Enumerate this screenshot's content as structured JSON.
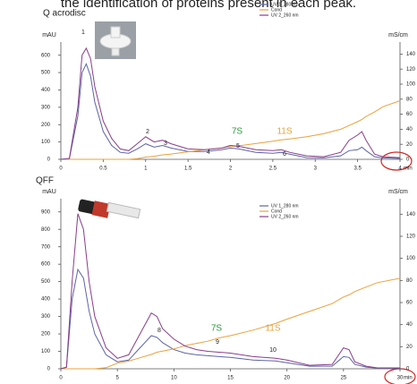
{
  "header": "the identification of proteins present in each peak.",
  "chart_data": [
    {
      "type": "line",
      "title": "Q acrodisc",
      "ylabel": "mAU",
      "y2label": "mS/cm",
      "xlabel": "min",
      "x": [
        0,
        0.1,
        0.2,
        0.25,
        0.3,
        0.35,
        0.4,
        0.5,
        0.6,
        0.7,
        0.8,
        0.9,
        1.0,
        1.1,
        1.2,
        1.3,
        1.5,
        1.7,
        1.9,
        2.0,
        2.1,
        2.3,
        2.5,
        2.6,
        2.7,
        2.9,
        3.1,
        3.3,
        3.4,
        3.5,
        3.55,
        3.6,
        3.7,
        3.8,
        4.0
      ],
      "series": [
        {
          "name": "UV 1_280 nm",
          "color": "#5b63a8",
          "values": [
            0,
            3,
            250,
            500,
            550,
            480,
            330,
            160,
            80,
            40,
            35,
            60,
            90,
            70,
            80,
            65,
            45,
            45,
            55,
            65,
            60,
            40,
            35,
            40,
            30,
            10,
            8,
            20,
            50,
            55,
            70,
            50,
            15,
            8,
            5
          ]
        },
        {
          "name": "Cond",
          "color": "#e8a23c",
          "axis": "y2",
          "values": [
            0,
            0,
            0,
            0,
            0,
            0,
            0,
            0,
            0,
            0,
            0,
            1,
            3,
            4,
            6,
            7,
            10,
            13,
            15,
            17,
            18,
            21,
            24,
            26,
            27,
            30,
            34,
            40,
            45,
            50,
            53,
            57,
            63,
            70,
            78
          ]
        },
        {
          "name": "UV 2_260 nm",
          "color": "#8a3d8a",
          "values": [
            0,
            5,
            300,
            600,
            640,
            580,
            420,
            220,
            120,
            60,
            50,
            90,
            130,
            100,
            110,
            90,
            60,
            55,
            65,
            80,
            75,
            55,
            50,
            55,
            40,
            20,
            15,
            40,
            110,
            140,
            160,
            110,
            30,
            15,
            10
          ]
        }
      ],
      "xlim": [
        0,
        4
      ],
      "xticks": [
        0,
        0.5,
        1,
        1.5,
        2,
        2.5,
        3,
        3.5,
        4
      ],
      "ylim": [
        0,
        650
      ],
      "yticks": [
        0,
        100,
        200,
        300,
        400,
        500,
        600
      ],
      "y2lim": [
        0,
        150
      ],
      "y2ticks": [
        0,
        20,
        40,
        60,
        80,
        100,
        120,
        140
      ],
      "annotations": [
        "1",
        "2",
        "3",
        "4",
        "7S",
        "5",
        "11S",
        "6"
      ]
    },
    {
      "type": "line",
      "title": "QFF",
      "ylabel": "mAU",
      "y2label": "mS/cm",
      "xlabel": "min",
      "x": [
        0,
        0.5,
        1,
        1.5,
        2,
        2.5,
        3,
        4,
        5,
        6,
        7,
        8,
        8.5,
        9,
        10,
        11,
        12,
        13,
        14,
        15,
        17,
        19,
        20,
        22,
        24,
        25,
        25.5,
        26,
        27,
        28,
        30
      ],
      "series": [
        {
          "name": "UV 1_280 nm",
          "color": "#5b63a8",
          "values": [
            0,
            8,
            400,
            570,
            520,
            330,
            200,
            80,
            40,
            50,
            120,
            190,
            180,
            150,
            110,
            90,
            80,
            75,
            70,
            65,
            50,
            45,
            35,
            15,
            15,
            70,
            65,
            25,
            10,
            4,
            3
          ]
        },
        {
          "name": "Cond",
          "color": "#e8a23c",
          "axis": "y2",
          "values": [
            0,
            0,
            0,
            0,
            0,
            0,
            0,
            1,
            5,
            7,
            10,
            13,
            15,
            16,
            18,
            21,
            23,
            25,
            28,
            30,
            35,
            41,
            45,
            52,
            59,
            65,
            67,
            70,
            74,
            78,
            82
          ]
        },
        {
          "name": "UV 2_260 nm",
          "color": "#8a3d8a",
          "values": [
            0,
            10,
            500,
            890,
            800,
            500,
            300,
            120,
            60,
            80,
            200,
            320,
            300,
            230,
            170,
            130,
            110,
            100,
            95,
            90,
            70,
            60,
            50,
            20,
            25,
            120,
            110,
            40,
            15,
            5,
            5
          ]
        }
      ],
      "xlim": [
        0,
        30
      ],
      "xticks": [
        0,
        5,
        10,
        15,
        20,
        25,
        30
      ],
      "ylim": [
        0,
        950
      ],
      "yticks": [
        0,
        100,
        200,
        300,
        400,
        500,
        600,
        700,
        800,
        900
      ],
      "y2lim": [
        0,
        150
      ],
      "y2ticks": [
        0,
        20,
        40,
        60,
        80,
        100,
        120,
        140
      ],
      "annotations": [
        "8",
        "7S",
        "9",
        "11S",
        "10"
      ]
    }
  ]
}
